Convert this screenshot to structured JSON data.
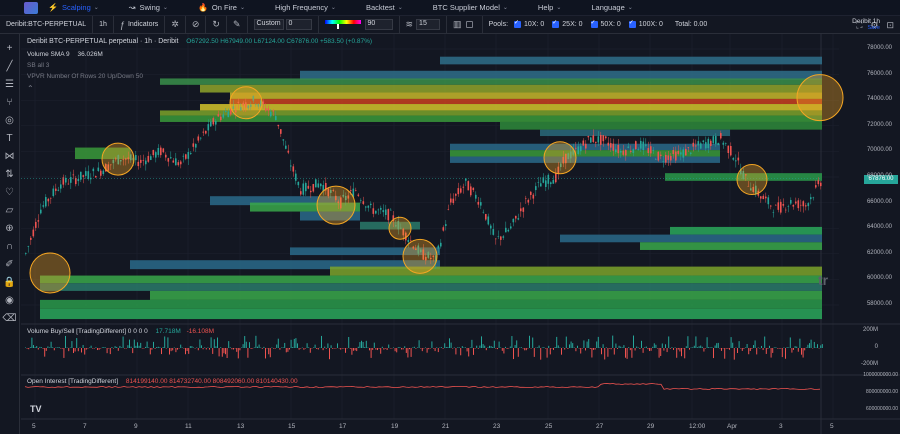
{
  "menu": {
    "items": [
      {
        "label": "Scalping",
        "icon": "⚡",
        "active": true
      },
      {
        "label": "Swing",
        "icon": "↝",
        "active": false
      },
      {
        "label": "On Fire",
        "icon": "🔥",
        "active": false
      },
      {
        "label": "High Frequency",
        "icon": "",
        "active": false
      },
      {
        "label": "Backtest",
        "icon": "",
        "active": false
      },
      {
        "label": "BTC Supplier Model",
        "icon": "",
        "active": false
      },
      {
        "label": "Help",
        "icon": "",
        "active": false
      },
      {
        "label": "Language",
        "icon": "",
        "active": false
      }
    ]
  },
  "toolbar": {
    "symbol": "Deribit:BTC-PERPETUAL",
    "interval": "1h",
    "indicators_label": "Indicators",
    "custom_value": "Custom",
    "custom_input": "0",
    "gradient_value": "90",
    "rows_value": "15",
    "pools_label": "Pools:",
    "pools": [
      {
        "label": "10X: 0",
        "checked": true
      },
      {
        "label": "25X: 0",
        "checked": true
      },
      {
        "label": "50X: 0",
        "checked": true
      },
      {
        "label": "100X: 0",
        "checked": true
      }
    ],
    "total_label": "Total: 0.00"
  },
  "legend": {
    "title": "Deribit BTC-PERPETUAL perpetual · 1h · Deribit",
    "ohlc": "O67292.50 H67949.00 L67124.00 C67876.00 +583.50 (+0.87%)",
    "volume": "Volume SMA 9",
    "volume_value": "36.026M",
    "sb": "SB all 3",
    "vpvr": "VPVR Number Of Rows 20 Up/Down 50",
    "volume_bs": "Volume Buy/Sell [TradingDifferent] 0 0 0 0",
    "volume_bs_buy": "17.718M",
    "volume_bs_sell": "-16.108M",
    "oi": "Open Interest [TradingDifferent]",
    "oi_values": "814199140.00 814732740.00 808492060.00 810140430.00"
  },
  "symbol_box": {
    "line1": "Deribit 1h",
    "line2": "Save"
  },
  "price_tag": "67876.00",
  "watermark": "tr",
  "y_axis": [
    "78000.00",
    "76000.00",
    "74000.00",
    "72000.00",
    "70000.00",
    "68000.00",
    "66000.00",
    "64000.00",
    "62000.00",
    "60000.00",
    "58000.00"
  ],
  "y_axis_vol": [
    "200M",
    "0",
    "-200M"
  ],
  "y_axis_oi": [
    "1000000000.00",
    "800000000.00",
    "600000000.00"
  ],
  "x_axis": [
    "5",
    "7",
    "9",
    "11",
    "13",
    "15",
    "17",
    "19",
    "21",
    "23",
    "25",
    "27",
    "29",
    "12:00",
    "Apr",
    "3",
    "5"
  ],
  "colors": {
    "up": "#26a69a",
    "down": "#ef5350",
    "bg": "#131722",
    "accent": "#2962ff",
    "circle": "#f5a623"
  }
}
